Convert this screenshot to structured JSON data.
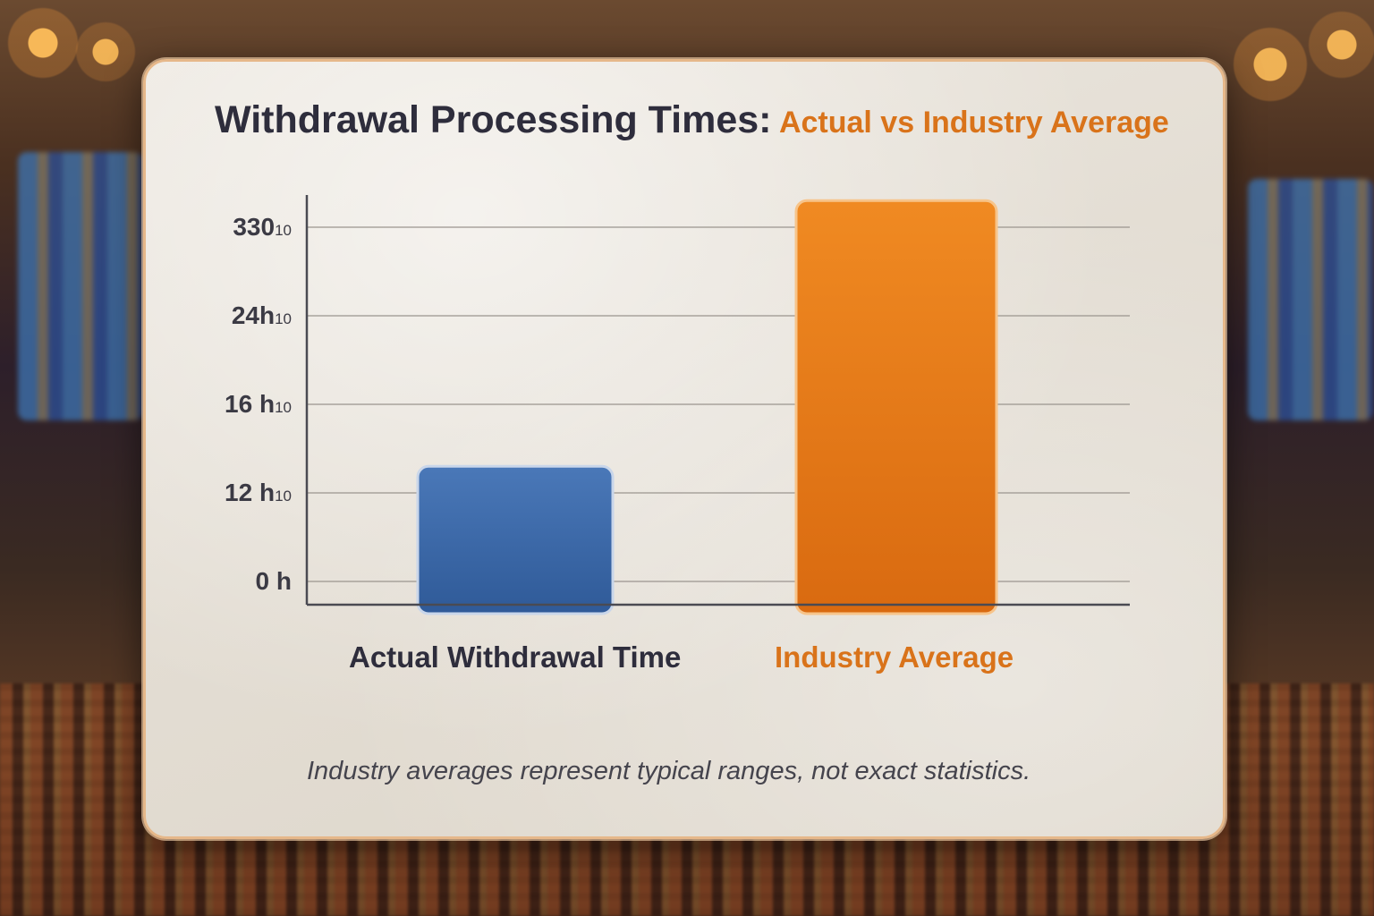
{
  "title": {
    "main": "Withdrawal Processing Times:",
    "sub": "Actual vs Industry Average"
  },
  "colors": {
    "title": "#2e2d3c",
    "accent": "#d9731a",
    "actual_bar": "#3d68a6",
    "industry_bar": "#e07a18"
  },
  "chart_data": {
    "type": "bar",
    "title": "Withdrawal Processing Times: Actual vs Industry Average",
    "categories": [
      "Actual Withdrawal Time",
      "Industry Average"
    ],
    "tick_labels": [
      {
        "main": "0 h",
        "sub": ""
      },
      {
        "main": "12 h",
        "sub": "10"
      },
      {
        "main": "16 h",
        "sub": "10"
      },
      {
        "main": "24h",
        "sub": "10"
      },
      {
        "main": "330",
        "sub": "10"
      }
    ],
    "tick_levels": [
      0,
      1,
      2,
      3,
      4
    ],
    "values": [
      1.3,
      4.3
    ],
    "ylim": [
      0,
      4.5
    ],
    "grid": true,
    "legend": "none"
  },
  "footnote": "Industry averages represent typical ranges, not exact statistics."
}
